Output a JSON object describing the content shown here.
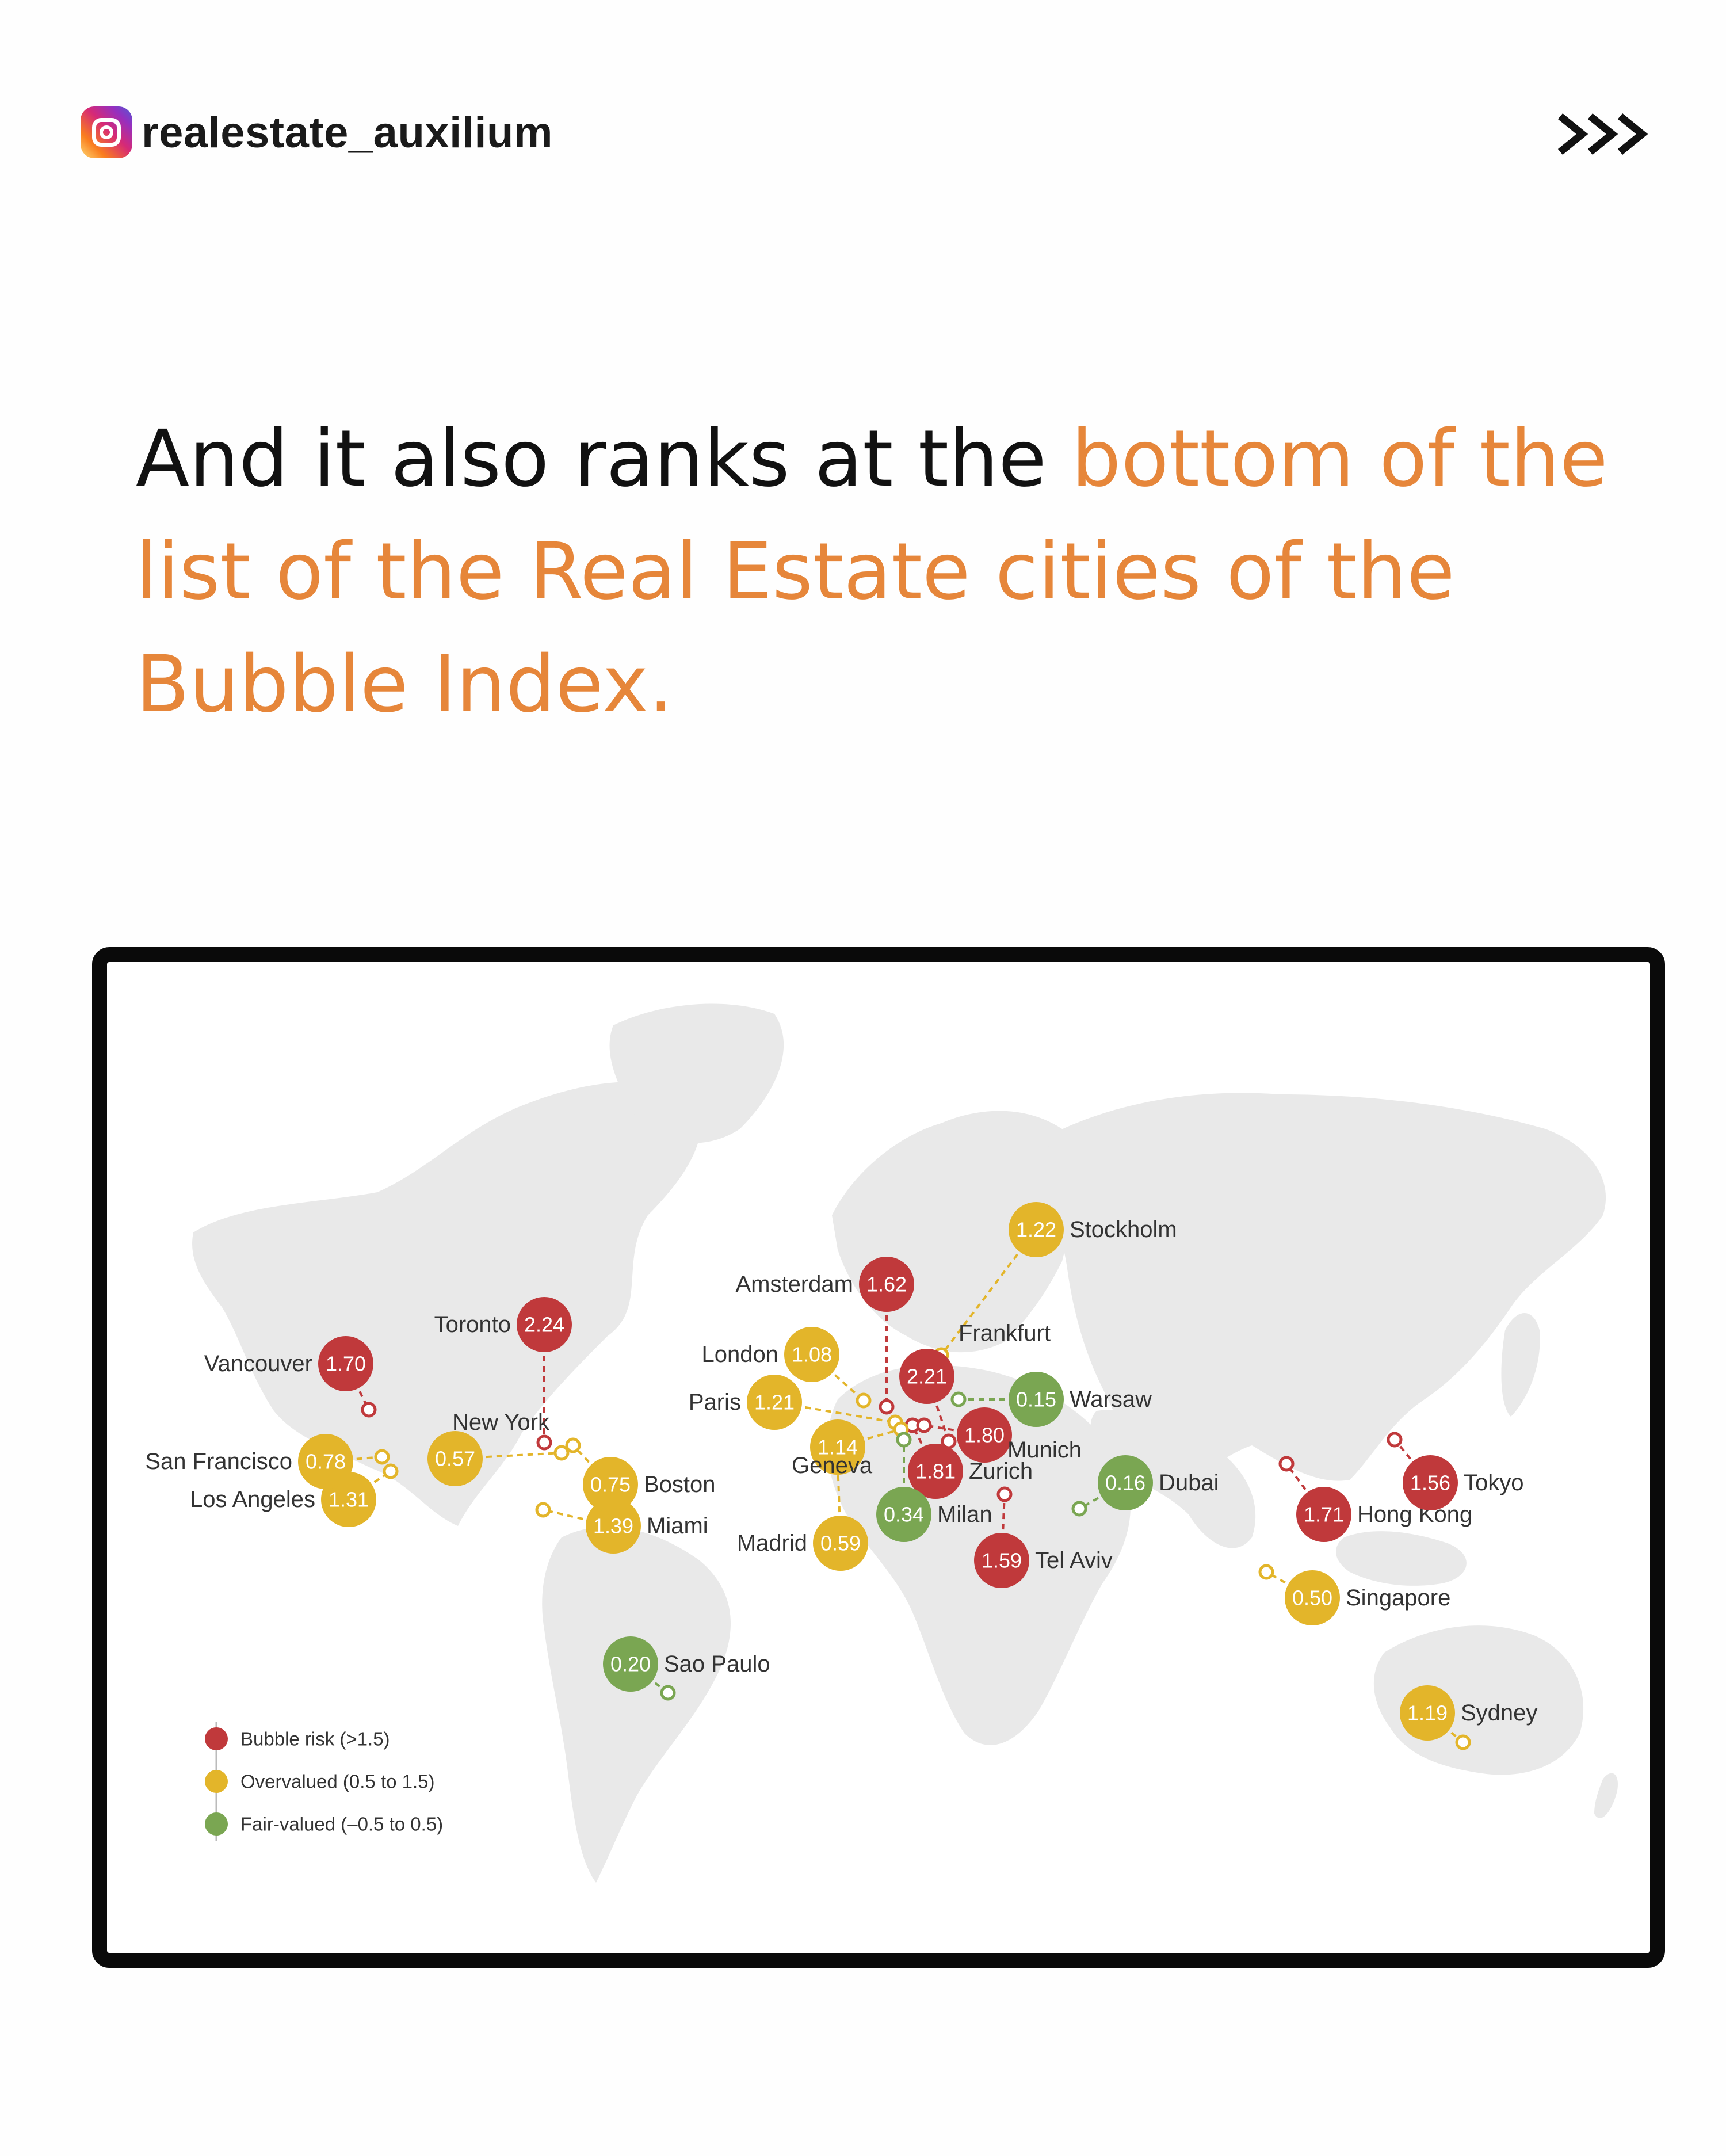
{
  "header": {
    "handle": "realestate_auxilium",
    "social_icon": "instagram-icon",
    "next_icon": "triple-chevron-right-icon"
  },
  "headline": {
    "lead": "And it also ranks at the ",
    "highlight": "bottom of the list of the Real Estate cities of the Bubble Index.",
    "highlight_color": "#e6863a"
  },
  "map": {
    "colors": {
      "bubble_risk": "#c0393b",
      "overvalued": "#e3b52a",
      "fair_valued": "#7aa652",
      "land": "#e9e9e9"
    },
    "legend": [
      {
        "category": "bubble_risk",
        "label": "Bubble risk (>1.5)"
      },
      {
        "category": "overvalued",
        "label": "Overvalued (0.5 to 1.5)"
      },
      {
        "category": "fair_valued",
        "label": "Fair-valued (–0.5 to 0.5)"
      }
    ],
    "cities": [
      {
        "name": "Toronto",
        "value": "2.24",
        "category": "bubble_risk"
      },
      {
        "name": "Frankfurt",
        "value": "2.21",
        "category": "bubble_risk"
      },
      {
        "name": "Zurich",
        "value": "1.81",
        "category": "bubble_risk"
      },
      {
        "name": "Munich",
        "value": "1.80",
        "category": "bubble_risk"
      },
      {
        "name": "Hong Kong",
        "value": "1.71",
        "category": "bubble_risk"
      },
      {
        "name": "Vancouver",
        "value": "1.70",
        "category": "bubble_risk"
      },
      {
        "name": "Amsterdam",
        "value": "1.62",
        "category": "bubble_risk"
      },
      {
        "name": "Tel Aviv",
        "value": "1.59",
        "category": "bubble_risk"
      },
      {
        "name": "Tokyo",
        "value": "1.56",
        "category": "bubble_risk"
      },
      {
        "name": "Miami",
        "value": "1.39",
        "category": "overvalued"
      },
      {
        "name": "Los Angeles",
        "value": "1.31",
        "category": "overvalued"
      },
      {
        "name": "Stockholm",
        "value": "1.22",
        "category": "overvalued"
      },
      {
        "name": "Paris",
        "value": "1.21",
        "category": "overvalued"
      },
      {
        "name": "Sydney",
        "value": "1.19",
        "category": "overvalued"
      },
      {
        "name": "Geneva",
        "value": "1.14",
        "category": "overvalued"
      },
      {
        "name": "London",
        "value": "1.08",
        "category": "overvalued"
      },
      {
        "name": "San Francisco",
        "value": "0.78",
        "category": "overvalued"
      },
      {
        "name": "Boston",
        "value": "0.75",
        "category": "overvalued"
      },
      {
        "name": "Madrid",
        "value": "0.59",
        "category": "overvalued"
      },
      {
        "name": "New York",
        "value": "0.57",
        "category": "overvalued"
      },
      {
        "name": "Singapore",
        "value": "0.50",
        "category": "overvalued"
      },
      {
        "name": "Milan",
        "value": "0.34",
        "category": "fair_valued"
      },
      {
        "name": "Sao Paulo",
        "value": "0.20",
        "category": "fair_valued"
      },
      {
        "name": "Dubai",
        "value": "0.16",
        "category": "fair_valued"
      },
      {
        "name": "Warsaw",
        "value": "0.15",
        "category": "fair_valued"
      }
    ]
  }
}
